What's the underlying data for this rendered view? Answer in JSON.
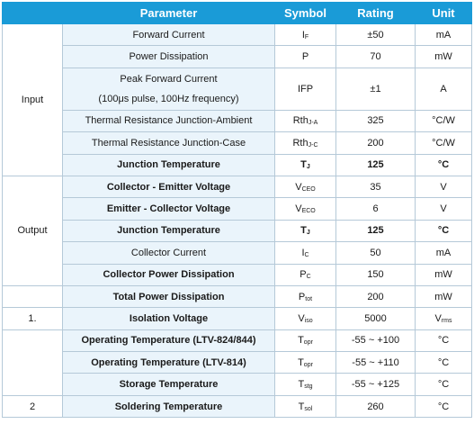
{
  "headers": [
    "",
    "Parameter",
    "Symbol",
    "Rating",
    "Unit"
  ],
  "groups": {
    "input": "Input",
    "output": "Output",
    "g1": "1.",
    "g2": "2"
  },
  "rows": [
    {
      "param": "Forward Current",
      "sym": "I",
      "sub": "F",
      "rating": "±50",
      "unit": "mA"
    },
    {
      "param": "Power Dissipation",
      "sym": "P",
      "sub": "",
      "rating": "70",
      "unit": "mW"
    },
    {
      "param": "Peak Forward Current",
      "param2": "(100μs pulse, 100Hz frequency)",
      "sym": "IFP",
      "sub": "",
      "rating": "±1",
      "unit": "A"
    },
    {
      "param": "Thermal Resistance Junction-Ambient",
      "sym": "Rth",
      "sub": "J-A",
      "rating": "325",
      "unit": "°C/W"
    },
    {
      "param": "Thermal Resistance Junction-Case",
      "sym": "Rth",
      "sub": "J-C",
      "rating": "200",
      "unit": "°C/W"
    },
    {
      "param": "Junction Temperature",
      "sym": "T",
      "sub": "J",
      "rating": "125",
      "unit": "°C"
    },
    {
      "param": "Collector - Emitter Voltage",
      "sym": "V",
      "sub": "CEO",
      "rating": "35",
      "unit": "V"
    },
    {
      "param": "Emitter - Collector Voltage",
      "sym": "V",
      "sub": "ECO",
      "rating": "6",
      "unit": "V"
    },
    {
      "param": "Junction Temperature",
      "sym": "T",
      "sub": "J",
      "rating": "125",
      "unit": "°C"
    },
    {
      "param": "Collector Current",
      "sym": "I",
      "sub": "C",
      "rating": "50",
      "unit": "mA"
    },
    {
      "param": "Collector Power Dissipation",
      "sym": "P",
      "sub": "C",
      "rating": "150",
      "unit": "mW"
    },
    {
      "param": "Total Power Dissipation",
      "sym": "P",
      "sub": "tot",
      "rating": "200",
      "unit": "mW"
    },
    {
      "param": "Isolation Voltage",
      "sym": "V",
      "sub": "iso",
      "rating": "5000",
      "unit": "V",
      "unit_sub": "rms"
    },
    {
      "param": "Operating Temperature (LTV-824/844)",
      "sym": "T",
      "sub": "opr",
      "rating": "-55 ~ +100",
      "unit": "°C"
    },
    {
      "param": "Operating Temperature (LTV-814)",
      "sym": "T",
      "sub": "opr",
      "rating": "-55 ~ +110",
      "unit": "°C"
    },
    {
      "param": "Storage Temperature",
      "sym": "T",
      "sub": "stg",
      "rating": "-55 ~ +125",
      "unit": "°C"
    },
    {
      "param": "Soldering Temperature",
      "sym": "T",
      "sub": "sol",
      "rating": "260",
      "unit": "°C"
    }
  ]
}
